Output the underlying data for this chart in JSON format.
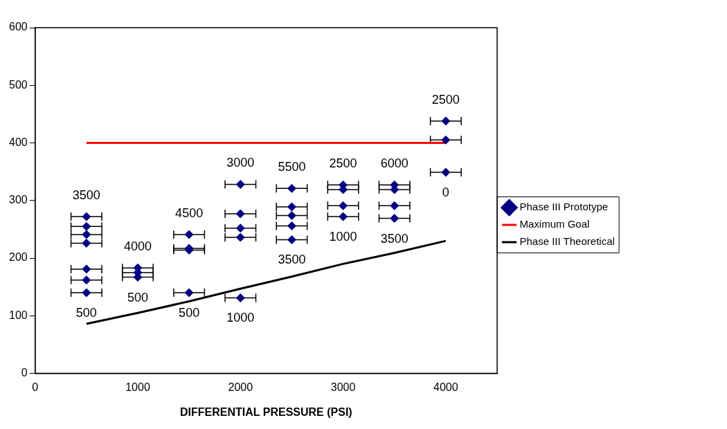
{
  "chart_data": {
    "type": "scatter",
    "xlabel": "DIFFERENTIAL PRESSURE (PSI)",
    "xlim": [
      0,
      4500
    ],
    "xticks": [
      0,
      1000,
      2000,
      3000,
      4000
    ],
    "ylim": [
      0,
      600
    ],
    "yticks": [
      0,
      100,
      200,
      300,
      400,
      500,
      600
    ],
    "grid": false,
    "legend": "right",
    "series": [
      {
        "name": "Phase III Prototype",
        "type": "scatter",
        "marker": "diamond",
        "color": "#000080",
        "x": [
          500,
          500,
          500,
          500,
          500,
          500,
          500,
          1000,
          1000,
          1000,
          1500,
          1500,
          1500,
          1500,
          2000,
          2000,
          2000,
          2000,
          2000,
          2500,
          2500,
          2500,
          2500,
          2500,
          3000,
          3000,
          3000,
          3000,
          3500,
          3500,
          3500,
          3500,
          4000,
          4000,
          4000
        ],
        "values": [
          272,
          255,
          241,
          226,
          181,
          162,
          140,
          183,
          175,
          167,
          241,
          217,
          214,
          140,
          328,
          277,
          252,
          236,
          131,
          321,
          289,
          274,
          256,
          232,
          327,
          319,
          291,
          272,
          327,
          319,
          291,
          269,
          438,
          405,
          349
        ],
        "xerrors": [
          150,
          150,
          150,
          150,
          150,
          150,
          150,
          150,
          150,
          150,
          150,
          150,
          150,
          150,
          150,
          150,
          150,
          150,
          150,
          150,
          150,
          150,
          150,
          150,
          150,
          150,
          150,
          150,
          150,
          150,
          150,
          150,
          150,
          150,
          150
        ]
      },
      {
        "name": "Maximum Goal",
        "type": "line",
        "marker": "none",
        "color": "#ff0000",
        "x": [
          500,
          4000
        ],
        "values": [
          400,
          400
        ]
      },
      {
        "name": "Phase III Theoretical",
        "type": "line",
        "marker": "none",
        "color": "#000000",
        "x": [
          500,
          1000,
          1500,
          2000,
          2500,
          3000,
          3500,
          4000
        ],
        "values": [
          86,
          105,
          125,
          147,
          168,
          190,
          209,
          230
        ]
      }
    ],
    "annotations": [
      {
        "text": "3500",
        "x": 500,
        "y": 272
      },
      {
        "text": "500",
        "x": 500,
        "y": 140
      },
      {
        "text": "4000",
        "x": 1000,
        "y": 183
      },
      {
        "text": "500",
        "x": 1000,
        "y": 167
      },
      {
        "text": "4500",
        "x": 1500,
        "y": 241
      },
      {
        "text": "500",
        "x": 1500,
        "y": 140
      },
      {
        "text": "3000",
        "x": 2000,
        "y": 328
      },
      {
        "text": "1000",
        "x": 2000,
        "y": 131
      },
      {
        "text": "5500",
        "x": 2500,
        "y": 321
      },
      {
        "text": "3500",
        "x": 2500,
        "y": 232
      },
      {
        "text": "2500",
        "x": 3000,
        "y": 327
      },
      {
        "text": "1000",
        "x": 3000,
        "y": 272
      },
      {
        "text": "6000",
        "x": 3500,
        "y": 327
      },
      {
        "text": "3500",
        "x": 3500,
        "y": 269
      },
      {
        "text": "2500",
        "x": 4000,
        "y": 438
      },
      {
        "text": "0",
        "x": 4000,
        "y": 349
      }
    ]
  }
}
